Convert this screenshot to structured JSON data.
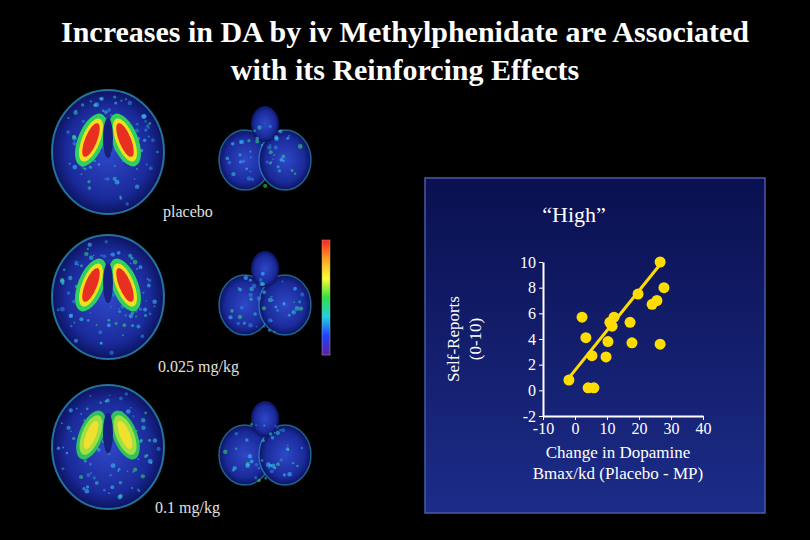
{
  "slide": {
    "title": "Increases in DA by iv Methylphenidate are Associated with its Reinforcing Effects",
    "scan_labels": [
      "placebo",
      "0.025 mg/kg",
      "0.1 mg/kg"
    ]
  },
  "chart_data": {
    "type": "scatter",
    "title": "“High”",
    "x_label": "Change in Dopamine Bmax/kd (Placebo - MP)",
    "y_label": "Self-Reports (0-10)",
    "xlim": [
      -10,
      40
    ],
    "xticks": [
      -10,
      0,
      10,
      20,
      30,
      40
    ],
    "ylim": [
      -2,
      10
    ],
    "yticks": [
      -2,
      0,
      2,
      4,
      6,
      8,
      10
    ],
    "series": [
      {
        "type": "scatter",
        "color": "#ffdd00",
        "marker": "circle",
        "x": [
          -1.9,
          4.1,
          5.9,
          5.3,
          9.7,
          3.4,
          10.3,
          17.8,
          2.2,
          10.9,
          12.2,
          17.2,
          26.6,
          19.7,
          24.1,
          25.6,
          27.8,
          26.6,
          11.6
        ],
        "values": [
          0.8,
          0.2,
          0.2,
          2.7,
          2.6,
          4.1,
          3.8,
          3.7,
          5.7,
          5.3,
          5.7,
          5.3,
          3.6,
          7.5,
          6.7,
          7.0,
          8.0,
          10.0,
          5.0
        ]
      },
      {
        "type": "line",
        "color": "#ffdd00",
        "line_style": "solid",
        "x": [
          -3.1,
          26.9
        ],
        "values": [
          0.6,
          9.9
        ]
      }
    ]
  }
}
